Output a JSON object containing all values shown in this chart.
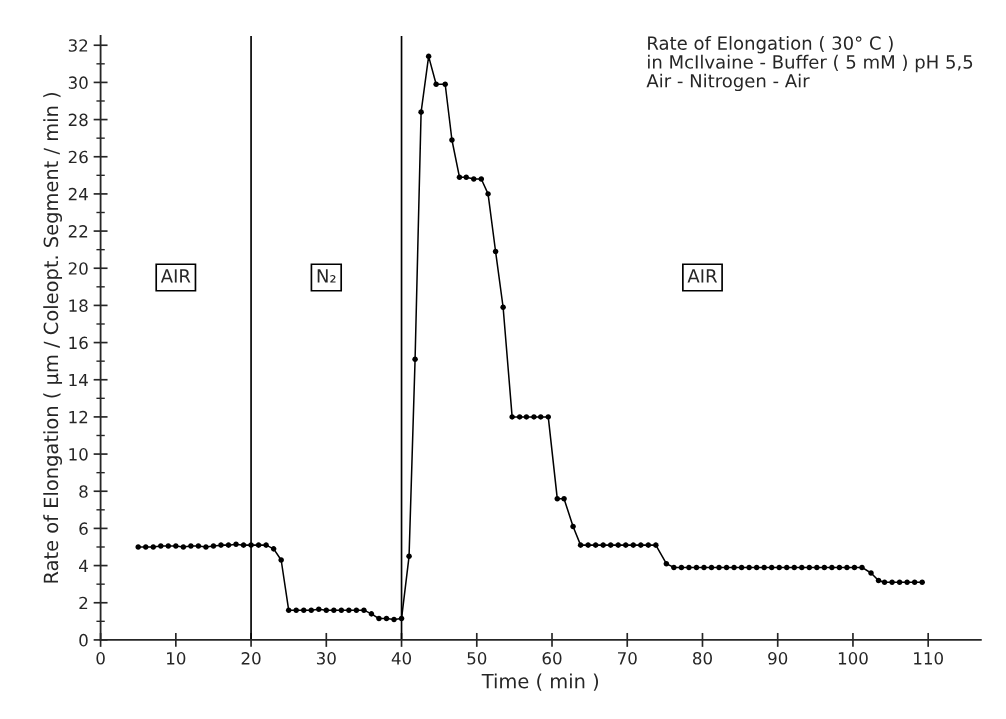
{
  "chart_data": {
    "type": "line",
    "title": "Rate of Elongation ( 30° C )\nin McIlvaine - Buffer ( 5 mM ) pH 5,5\nAir - Nitrogen - Air",
    "xlabel": "Time ( min )",
    "ylabel": "Rate of Elongation ( µm / Coleopt. Segment / min )",
    "x": [
      5,
      6,
      7,
      8,
      9,
      10,
      11,
      12,
      13,
      14,
      15,
      16,
      17,
      18,
      19,
      20,
      21,
      22,
      23,
      24,
      25,
      26,
      27,
      28,
      29,
      30,
      31,
      32,
      33,
      34,
      35,
      36,
      37,
      38,
      39,
      40,
      41,
      41.8,
      42.6,
      43.6,
      44.6,
      45.8,
      46.7,
      47.7,
      48.6,
      49.6,
      50.6,
      51.5,
      52.5,
      53.5,
      54.7,
      55.7,
      56.6,
      57.6,
      58.5,
      59.5,
      60.7,
      61.6,
      62.8,
      63.8,
      64.8,
      65.8,
      66.8,
      67.8,
      68.8,
      69.8,
      70.8,
      71.8,
      72.8,
      73.8,
      75.2,
      76.2,
      77.2,
      78.2,
      79.2,
      80.2,
      81.2,
      82.2,
      83.2,
      84.2,
      85.2,
      86.2,
      87.2,
      88.2,
      89.2,
      90.2,
      91.2,
      92.2,
      93.2,
      94.2,
      95.2,
      96.2,
      97.2,
      98.2,
      99.2,
      100.2,
      101.2,
      102.4,
      103.4,
      104.2,
      105.2,
      106.2,
      107.2,
      108.2,
      109.2
    ],
    "series": [
      {
        "color": "#000000",
        "values": [
          5.0,
          5.0,
          5.0,
          5.05,
          5.05,
          5.05,
          5.0,
          5.05,
          5.05,
          5.0,
          5.05,
          5.1,
          5.1,
          5.15,
          5.1,
          5.1,
          5.1,
          5.1,
          4.9,
          4.3,
          1.6,
          1.6,
          1.6,
          1.6,
          1.65,
          1.6,
          1.6,
          1.6,
          1.6,
          1.6,
          1.6,
          1.4,
          1.15,
          1.15,
          1.1,
          1.15,
          4.5,
          15.1,
          28.4,
          31.4,
          29.9,
          29.9,
          26.9,
          24.9,
          24.9,
          24.8,
          24.8,
          24.0,
          20.9,
          17.9,
          12.0,
          12.0,
          12.0,
          12.0,
          12.0,
          12.0,
          7.6,
          7.6,
          6.1,
          5.1,
          5.1,
          5.1,
          5.1,
          5.1,
          5.1,
          5.1,
          5.1,
          5.1,
          5.1,
          5.1,
          4.1,
          3.9,
          3.9,
          3.9,
          3.9,
          3.9,
          3.9,
          3.9,
          3.9,
          3.9,
          3.9,
          3.9,
          3.9,
          3.9,
          3.9,
          3.9,
          3.9,
          3.9,
          3.9,
          3.9,
          3.9,
          3.9,
          3.9,
          3.9,
          3.9,
          3.9,
          3.9,
          3.6,
          3.2,
          3.1,
          3.1,
          3.1,
          3.1,
          3.1,
          3.1
        ]
      }
    ],
    "xlim": [
      0,
      117
    ],
    "ylim": [
      0,
      32.5
    ],
    "xticks": [
      0,
      10,
      20,
      30,
      40,
      50,
      60,
      70,
      80,
      90,
      100,
      110
    ],
    "yticks": [
      0,
      2,
      4,
      6,
      8,
      10,
      12,
      14,
      16,
      18,
      20,
      22,
      24,
      26,
      28,
      30,
      32
    ],
    "ref_lines": [
      {
        "axis": "x",
        "value": 20,
        "color": "#000000"
      },
      {
        "axis": "x",
        "value": 40,
        "color": "#000000"
      }
    ],
    "annotations": [
      {
        "text": "AIR",
        "x": 10,
        "y": 19.5
      },
      {
        "text": "N₂",
        "x": 30,
        "y": 19.5
      },
      {
        "text": "AIR",
        "x": 80,
        "y": 19.5
      }
    ],
    "marker": "circle",
    "line_style": "solid",
    "grid": false,
    "legend": false
  }
}
